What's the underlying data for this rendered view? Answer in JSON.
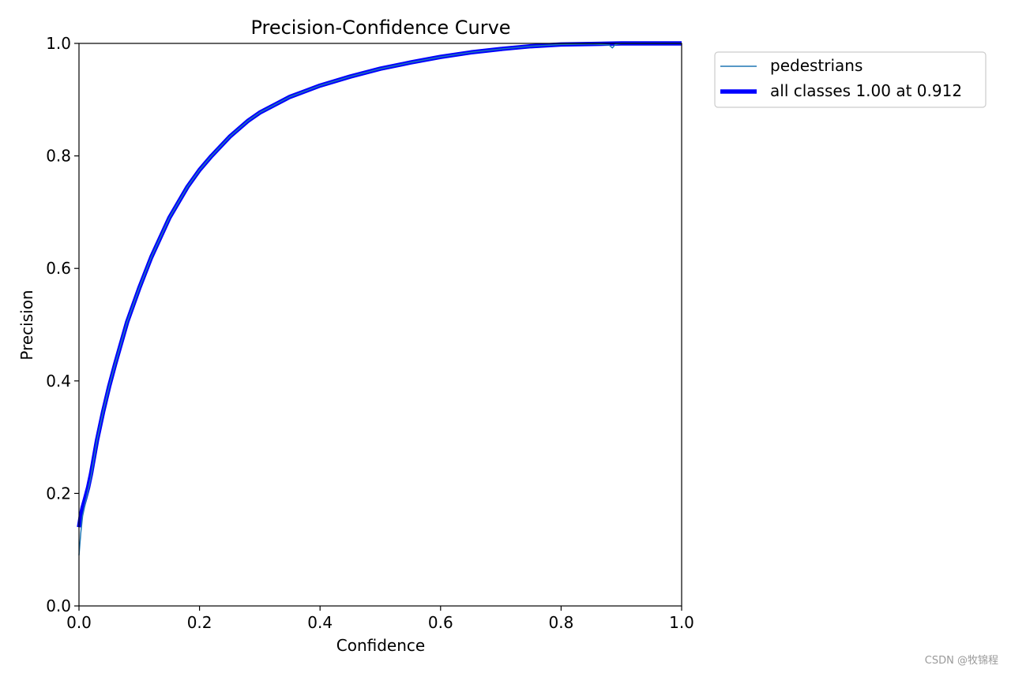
{
  "chart_data": {
    "type": "line",
    "title": "Precision-Confidence Curve",
    "xlabel": "Confidence",
    "ylabel": "Precision",
    "xlim": [
      0,
      1
    ],
    "ylim": [
      0,
      1
    ],
    "x_ticks": [
      "0.0",
      "0.2",
      "0.4",
      "0.6",
      "0.8",
      "1.0"
    ],
    "y_ticks": [
      "0.0",
      "0.2",
      "0.4",
      "0.6",
      "0.8",
      "1.0"
    ],
    "grid": false,
    "legend_position": "outside-top-right",
    "series": [
      {
        "name": "pedestrians",
        "color": "#1f77b4",
        "x": [
          0.0,
          0.003,
          0.006,
          0.01,
          0.015,
          0.02,
          0.03,
          0.04,
          0.05,
          0.06,
          0.08,
          0.1,
          0.12,
          0.15,
          0.18,
          0.2,
          0.22,
          0.25,
          0.28,
          0.3,
          0.35,
          0.4,
          0.45,
          0.5,
          0.55,
          0.6,
          0.65,
          0.7,
          0.75,
          0.8,
          0.85,
          0.87,
          0.88,
          0.885,
          0.89,
          0.9,
          0.912,
          0.95,
          1.0
        ],
        "y": [
          0.09,
          0.13,
          0.16,
          0.18,
          0.205,
          0.23,
          0.295,
          0.345,
          0.39,
          0.43,
          0.505,
          0.565,
          0.62,
          0.69,
          0.745,
          0.775,
          0.8,
          0.834,
          0.862,
          0.877,
          0.905,
          0.925,
          0.941,
          0.955,
          0.966,
          0.976,
          0.984,
          0.99,
          0.995,
          0.998,
          0.999,
          0.998,
          0.997,
          0.992,
          0.998,
          1.0,
          1.0,
          1.0,
          1.0
        ]
      },
      {
        "name": "all classes 1.00 at 0.912",
        "color": "#0000ff",
        "x": [
          0.0,
          0.003,
          0.006,
          0.01,
          0.015,
          0.02,
          0.03,
          0.04,
          0.05,
          0.06,
          0.08,
          0.1,
          0.12,
          0.15,
          0.18,
          0.2,
          0.22,
          0.25,
          0.28,
          0.3,
          0.35,
          0.4,
          0.45,
          0.5,
          0.55,
          0.6,
          0.65,
          0.7,
          0.75,
          0.8,
          0.85,
          0.9,
          0.912,
          0.95,
          1.0
        ],
        "y": [
          0.14,
          0.16,
          0.175,
          0.19,
          0.21,
          0.235,
          0.295,
          0.345,
          0.39,
          0.43,
          0.505,
          0.565,
          0.62,
          0.69,
          0.745,
          0.775,
          0.8,
          0.834,
          0.862,
          0.877,
          0.905,
          0.925,
          0.941,
          0.955,
          0.966,
          0.976,
          0.984,
          0.99,
          0.995,
          0.998,
          0.999,
          1.0,
          1.0,
          1.0,
          1.0
        ]
      }
    ]
  },
  "watermark": "CSDN @牧锦程"
}
